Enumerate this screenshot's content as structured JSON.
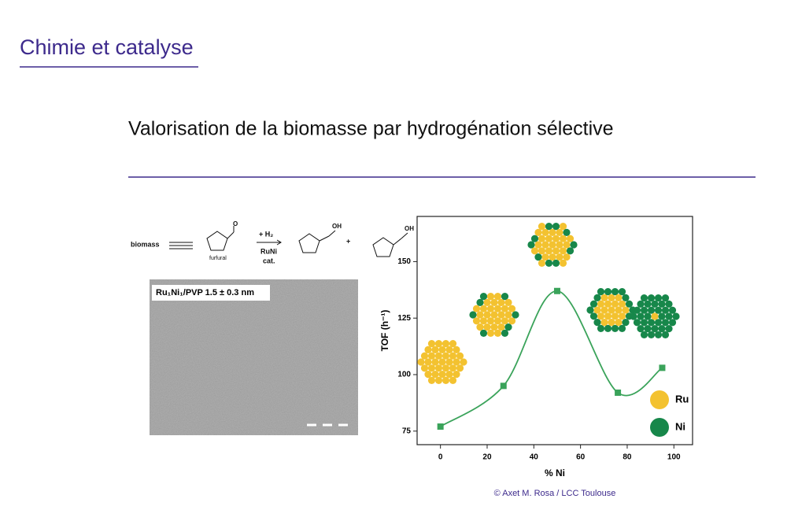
{
  "header": {
    "title": "Chimie et catalyse"
  },
  "subtitle": "Valorisation de la biomasse par hydrogénation sélective",
  "scheme": {
    "biomass": "biomass",
    "furfural": "furfural",
    "aldehyde_o": "O",
    "reagent": "+ H₂",
    "catalyst": "RuNi",
    "cat": "cat.",
    "oh1": "OH",
    "plus": "+",
    "oh2": "OH"
  },
  "tem": {
    "label": "Ru₁Ni₁/PVP 1.5 ± 0.3 nm"
  },
  "chart_data": {
    "type": "line",
    "x": [
      0,
      27,
      50,
      76,
      95
    ],
    "values": [
      77,
      95,
      137,
      92,
      103
    ],
    "color": "#3aa35a",
    "xlim": [
      -10,
      108
    ],
    "ylim": [
      69,
      170
    ],
    "xticks": [
      0,
      20,
      40,
      60,
      80,
      100
    ],
    "yticks": [
      75,
      100,
      125,
      150
    ],
    "xlabel": "% Ni",
    "ylabel": "TOF (h⁻¹)",
    "legend": [
      {
        "name": "Ru",
        "color": "#f3c230"
      },
      {
        "name": "Ni",
        "color": "#17874a"
      }
    ]
  },
  "credit": "© Axet M. Rosa / LCC Toulouse"
}
